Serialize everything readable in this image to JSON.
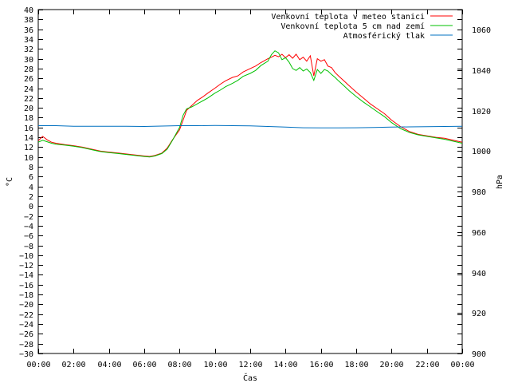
{
  "chart_data": {
    "type": "line",
    "xlabel": "Čas",
    "ylabel": "°C",
    "y2label": "hPa",
    "x_ticks": [
      "00:00",
      "02:00",
      "04:00",
      "06:00",
      "08:00",
      "10:00",
      "12:00",
      "14:00",
      "16:00",
      "18:00",
      "20:00",
      "22:00",
      "00:00"
    ],
    "x_range_hours": [
      0,
      24
    ],
    "ylim": [
      -30,
      40
    ],
    "y_tick_step": 2,
    "y2lim": [
      900,
      1070
    ],
    "y2_ticks": [
      900,
      920,
      940,
      960,
      980,
      1000,
      1020,
      1040,
      1060
    ],
    "grid": false,
    "legend_position": "top-right",
    "series": [
      {
        "name": "Venkovní teplota v meteo stanici",
        "axis": "left",
        "color": "#ff0000",
        "x": [
          0,
          0.25,
          0.5,
          0.75,
          1,
          1.5,
          2,
          2.5,
          3,
          3.5,
          4,
          4.5,
          5,
          5.5,
          6,
          6.3,
          6.6,
          7,
          7.3,
          7.6,
          8,
          8.2,
          8.4,
          8.7,
          9,
          9.3,
          9.6,
          10,
          10.3,
          10.6,
          11,
          11.3,
          11.6,
          12,
          12.3,
          12.6,
          13,
          13.2,
          13.4,
          13.6,
          13.8,
          14,
          14.2,
          14.4,
          14.6,
          14.8,
          15,
          15.2,
          15.4,
          15.6,
          15.8,
          16,
          16.2,
          16.4,
          16.6,
          16.8,
          17,
          17.3,
          17.6,
          18,
          18.4,
          18.8,
          19.2,
          19.6,
          20,
          20.5,
          21,
          21.5,
          22,
          22.5,
          23,
          23.5,
          24
        ],
        "values": [
          13.3,
          14.2,
          13.5,
          13,
          12.8,
          12.5,
          12.3,
          12,
          11.6,
          11.2,
          11,
          10.8,
          10.6,
          10.4,
          10.2,
          10.1,
          10.3,
          10.8,
          11.8,
          13.5,
          15.5,
          17.5,
          19.5,
          20.5,
          21.5,
          22.2,
          23,
          24,
          24.8,
          25.5,
          26.2,
          26.5,
          27.3,
          28,
          28.5,
          29.2,
          30,
          30.3,
          30.7,
          30.4,
          30.9,
          30.2,
          30.8,
          30.1,
          30.9,
          29.8,
          30.3,
          29.5,
          30.6,
          26.5,
          30,
          29.5,
          29.8,
          28.5,
          28.2,
          27.2,
          26.5,
          25.5,
          24.5,
          23.2,
          22,
          20.8,
          19.8,
          18.8,
          17.5,
          16.2,
          15.2,
          14.6,
          14.3,
          14,
          13.8,
          13.4,
          13
        ]
      },
      {
        "name": "Venkovní teplota 5 cm nad zemí",
        "axis": "left",
        "color": "#00c000",
        "x": [
          0,
          0.25,
          0.5,
          0.75,
          1,
          1.5,
          2,
          2.5,
          3,
          3.5,
          4,
          4.5,
          5,
          5.5,
          6,
          6.3,
          6.6,
          7,
          7.3,
          7.6,
          8,
          8.2,
          8.4,
          8.7,
          9,
          9.3,
          9.6,
          10,
          10.3,
          10.6,
          11,
          11.3,
          11.6,
          12,
          12.3,
          12.6,
          13,
          13.2,
          13.4,
          13.6,
          13.8,
          14,
          14.2,
          14.4,
          14.6,
          14.8,
          15,
          15.2,
          15.4,
          15.6,
          15.8,
          16,
          16.2,
          16.4,
          16.6,
          16.8,
          17,
          17.3,
          17.6,
          18,
          18.4,
          18.8,
          19.2,
          19.6,
          20,
          20.5,
          21,
          21.5,
          22,
          22.5,
          23,
          23.5,
          24
        ],
        "values": [
          13,
          13.4,
          13.1,
          12.8,
          12.6,
          12.4,
          12.2,
          11.9,
          11.5,
          11.1,
          10.9,
          10.7,
          10.5,
          10.3,
          10.1,
          10,
          10.2,
          10.7,
          11.6,
          13.4,
          16,
          18.5,
          19.8,
          20.2,
          20.8,
          21.4,
          22,
          23,
          23.6,
          24.3,
          25,
          25.6,
          26.4,
          27,
          27.6,
          28.6,
          29.5,
          30.8,
          31.6,
          31.2,
          29.8,
          30.2,
          29.3,
          28,
          27.6,
          28.2,
          27.5,
          27.9,
          27.2,
          25.6,
          27.8,
          27,
          27.8,
          27.5,
          26.8,
          26.2,
          25.5,
          24.5,
          23.5,
          22.3,
          21.2,
          20.2,
          19.2,
          18.2,
          17,
          15.8,
          15,
          14.5,
          14.2,
          13.9,
          13.6,
          13.2,
          12.8
        ]
      },
      {
        "name": "Atmosférický tlak",
        "axis": "right",
        "color": "#0070c0",
        "x": [
          0,
          1,
          2,
          3,
          4,
          5,
          6,
          7,
          8,
          9,
          10,
          11,
          12,
          13,
          14,
          15,
          16,
          17,
          18,
          19,
          20,
          21,
          22,
          23,
          24
        ],
        "values": [
          1012.6,
          1012.6,
          1012.3,
          1012.3,
          1012.3,
          1012.3,
          1012.2,
          1012.4,
          1012.6,
          1012.6,
          1012.7,
          1012.6,
          1012.5,
          1012.2,
          1011.9,
          1011.6,
          1011.5,
          1011.5,
          1011.6,
          1011.7,
          1011.9,
          1012.0,
          1012.1,
          1012.2,
          1012.3
        ]
      }
    ]
  }
}
